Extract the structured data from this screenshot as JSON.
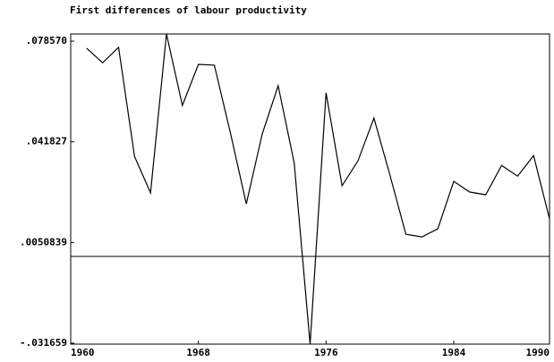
{
  "chart_data": {
    "type": "line",
    "title": "First differences of labour productivity",
    "x": [
      1961,
      1962,
      1963,
      1964,
      1965,
      1966,
      1967,
      1968,
      1969,
      1970,
      1971,
      1972,
      1973,
      1974,
      1975,
      1976,
      1977,
      1978,
      1979,
      1980,
      1981,
      1982,
      1983,
      1984,
      1985,
      1986,
      1987,
      1988,
      1989,
      1990
    ],
    "series": [
      {
        "color": "#000000",
        "values": [
          0.076,
          0.0707,
          0.0763,
          0.0365,
          0.0232,
          0.0812,
          0.0551,
          0.0701,
          0.0698,
          0.0453,
          0.0192,
          0.0447,
          0.0623,
          0.0342,
          -0.032,
          0.0597,
          0.0258,
          0.0349,
          0.0505,
          0.0297,
          0.0081,
          0.0071,
          0.0101,
          0.0274,
          0.0235,
          0.0225,
          0.0332,
          0.0293,
          0.0368,
          0.0137
        ]
      }
    ],
    "xlim": [
      1960,
      1990
    ],
    "xticks": [
      1960,
      1968,
      1976,
      1984,
      1990
    ],
    "ylim": [
      -0.032,
      0.0812
    ],
    "yticks": [
      {
        "value": -0.031659,
        "label": "-.031659"
      },
      {
        "value": 0.0050839,
        "label": ".0050839"
      },
      {
        "value": 0.041827,
        "label": ".041827"
      },
      {
        "value": 0.07857,
        "label": ".078570"
      }
    ],
    "hline": 0
  }
}
